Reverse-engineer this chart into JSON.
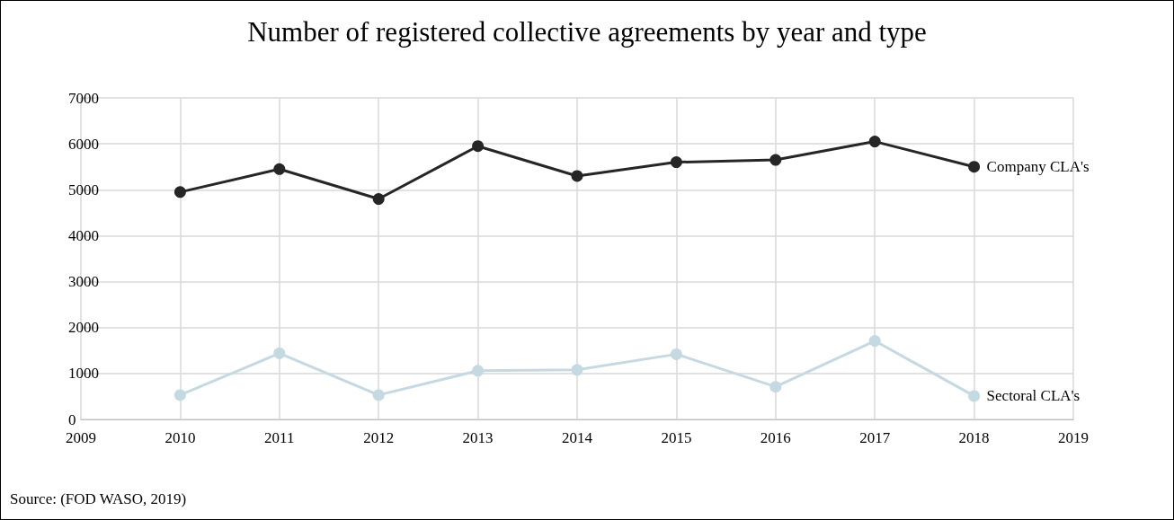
{
  "chart_data": {
    "type": "line",
    "title": "Number of registered collective agreements by year and type",
    "x": [
      2010,
      2011,
      2012,
      2013,
      2014,
      2015,
      2016,
      2017,
      2018
    ],
    "series": [
      {
        "name": "Company CLA's",
        "color": "#262626",
        "values": [
          4950,
          5450,
          4800,
          5950,
          5300,
          5600,
          5650,
          6050,
          5500
        ]
      },
      {
        "name": "Sectoral CLA's",
        "color": "#c5d9e3",
        "values": [
          530,
          1440,
          530,
          1060,
          1080,
          1420,
          710,
          1710,
          510
        ]
      }
    ],
    "xlim": [
      2009,
      2019
    ],
    "xticks": [
      2009,
      2010,
      2011,
      2012,
      2013,
      2014,
      2015,
      2016,
      2017,
      2018,
      2019
    ],
    "ylim": [
      0,
      7000
    ],
    "yticks": [
      0,
      1000,
      2000,
      3000,
      4000,
      5000,
      6000,
      7000
    ],
    "grid": true,
    "marker": "circle",
    "line_style": "solid",
    "legend": false,
    "annotations": [
      "Source: (FOD WASO, 2019)"
    ]
  }
}
